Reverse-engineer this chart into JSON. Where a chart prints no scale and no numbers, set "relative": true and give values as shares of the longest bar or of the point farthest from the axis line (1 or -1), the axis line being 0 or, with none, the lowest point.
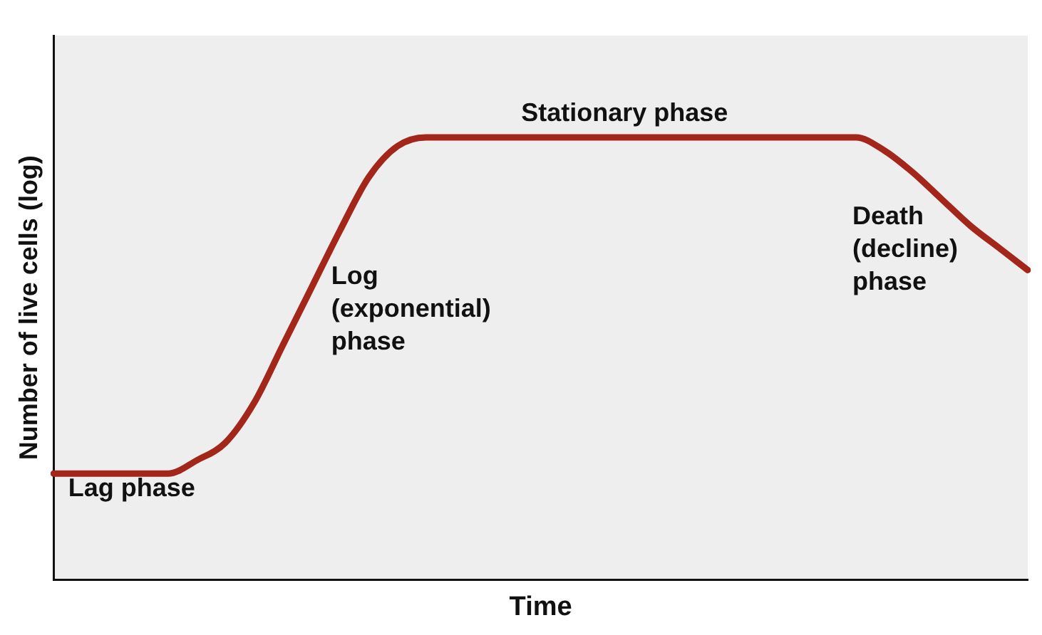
{
  "chart_data": {
    "type": "line",
    "relative": true,
    "xlabel": "Time",
    "ylabel": "Number of live cells (log)",
    "categories": [
      null,
      null,
      null,
      null,
      null,
      null,
      null,
      null,
      null,
      null,
      null,
      null,
      null,
      null,
      null,
      null,
      null,
      null,
      null,
      null,
      null,
      null,
      null,
      null,
      null,
      null,
      null,
      null,
      null,
      null,
      null,
      null,
      null,
      null,
      null
    ],
    "series": [
      {
        "color": "#a3261a",
        "values": [
          0.24,
          0.24,
          0.24,
          0.24,
          0.24,
          0.27,
          0.31,
          0.4,
          0.53,
          0.66,
          0.79,
          0.91,
          0.98,
          1,
          1,
          1,
          1,
          1,
          1,
          1,
          1,
          1,
          1,
          1,
          1,
          1,
          1,
          1,
          1,
          0.97,
          0.92,
          0.86,
          0.8,
          0.75,
          0.7
        ]
      }
    ],
    "annotations": [
      "Lag phase",
      "Log\n(exponential)\nphase",
      "Stationary phase",
      "Death\n(decline)\nphase"
    ],
    "grid": false,
    "legend": false,
    "marker": "none",
    "line_style": "solid"
  }
}
